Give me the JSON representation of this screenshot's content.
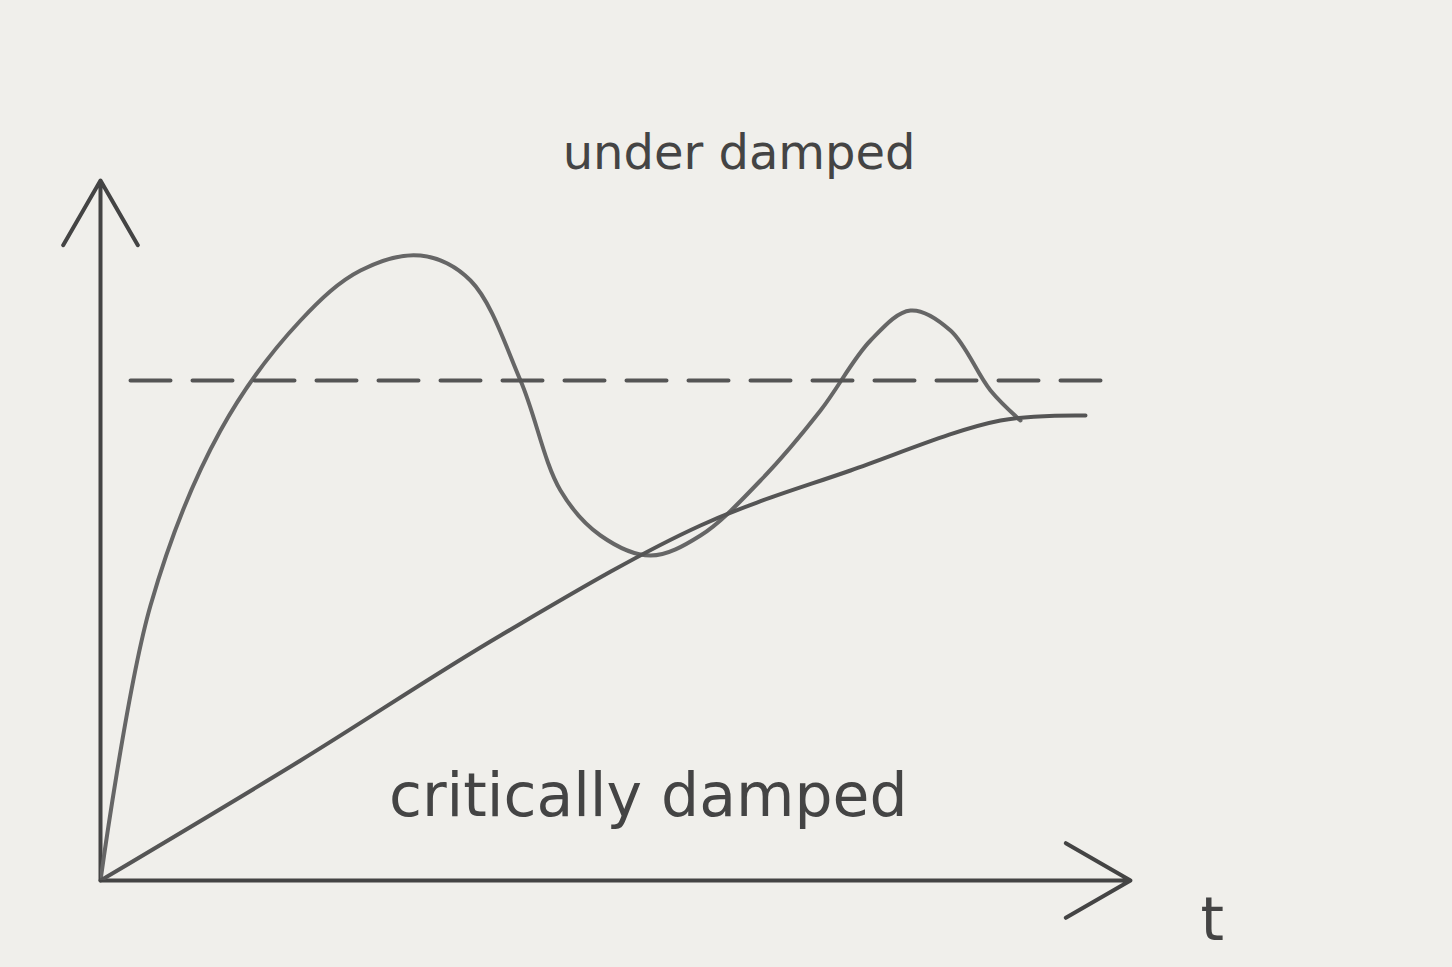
{
  "chart_data": {
    "type": "line",
    "xlabel": "t",
    "xlim": [
      0,
      10.3
    ],
    "ylim": [
      0,
      1.4
    ],
    "xticks": [],
    "yticks": [],
    "tick_labels": false,
    "grid": false,
    "series": [
      {
        "name": "under damped",
        "color": "#666666",
        "line_style": "solid",
        "x": [
          0,
          0.5,
          1.2,
          2,
          2.6,
          3.2,
          3.7,
          4.2,
          4.6,
          5,
          5.5,
          6,
          6.6,
          7.2,
          7.7,
          8.1,
          8.5,
          8.9,
          9.2
        ],
        "values": [
          0,
          0.55,
          0.9,
          1.12,
          1.22,
          1.25,
          1.2,
          1.0,
          0.78,
          0.69,
          0.65,
          0.69,
          0.8,
          0.94,
          1.08,
          1.14,
          1.1,
          0.98,
          0.92
        ]
      },
      {
        "name": "critically damped",
        "color": "#555555",
        "line_style": "solid",
        "x": [
          0,
          2,
          4,
          6,
          7.5,
          9,
          9.85
        ],
        "values": [
          0,
          0.24,
          0.49,
          0.71,
          0.82,
          0.92,
          0.93
        ]
      },
      {
        "color": "#555555",
        "line_style": "dashed",
        "x": [
          0.3,
          10
        ],
        "values": [
          1,
          1
        ]
      }
    ]
  }
}
